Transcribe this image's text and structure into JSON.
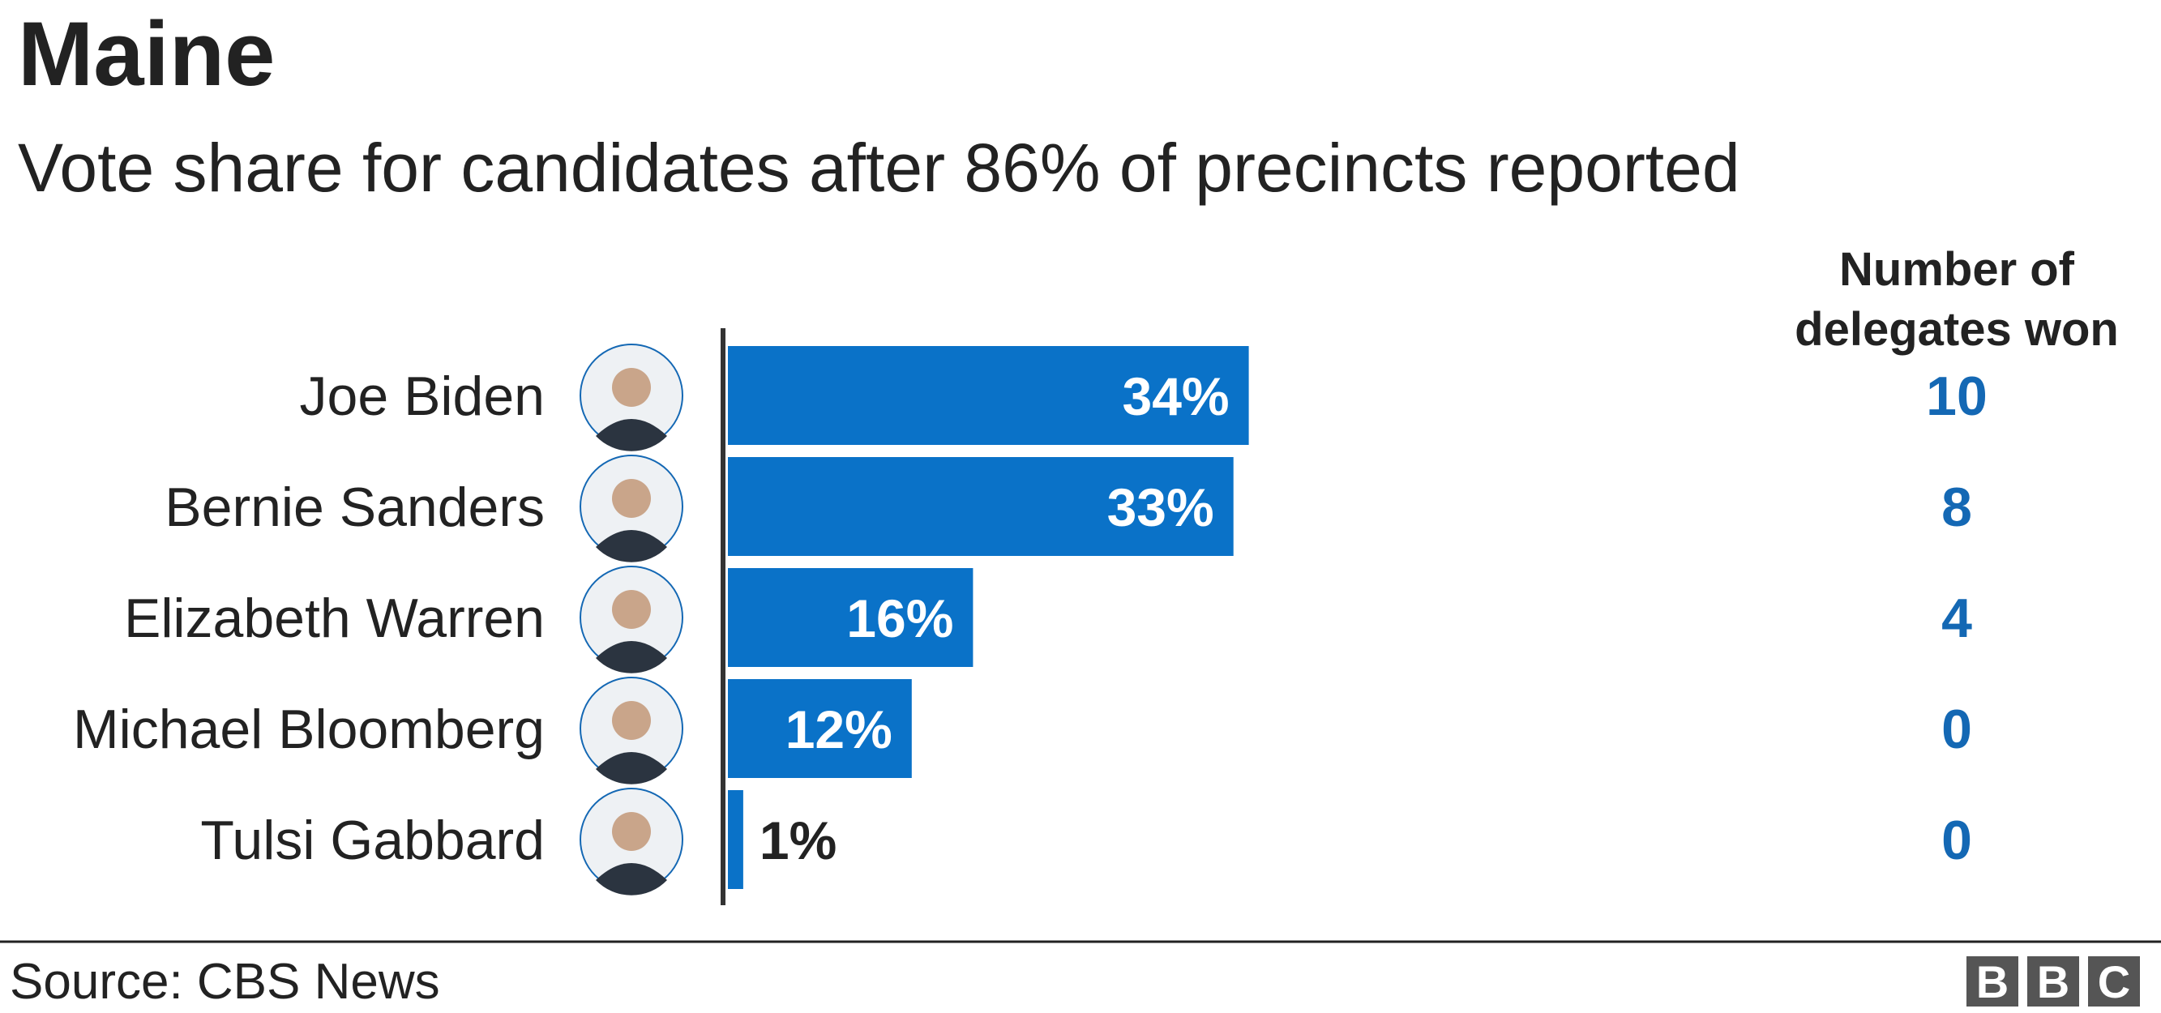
{
  "chart_data": {
    "type": "bar",
    "orientation": "horizontal",
    "title": "Maine",
    "subtitle": "Vote share for candidates after 86% of precincts reported",
    "categories": [
      "Joe Biden",
      "Bernie Sanders",
      "Elizabeth Warren",
      "Michael Bloomberg",
      "Tulsi Gabbard"
    ],
    "values": [
      34,
      33,
      16,
      12,
      1
    ],
    "value_labels": [
      "34%",
      "33%",
      "16%",
      "12%",
      "1%"
    ],
    "color": "#0a72c8",
    "delegates_title": "Number of delegates won",
    "delegates": [
      10,
      8,
      4,
      0,
      0
    ],
    "delegates_color": "#1468b4",
    "source": "Source: CBS News",
    "logo": [
      "B",
      "B",
      "C"
    ]
  }
}
